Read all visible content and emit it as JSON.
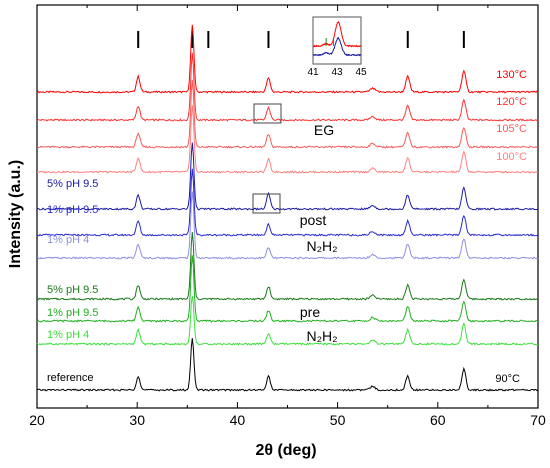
{
  "chart_data": {
    "type": "line",
    "xlabel": "2θ (deg)",
    "ylabel": "Intensity (a.u.)",
    "xlim": [
      20,
      70
    ],
    "xticks": [
      20,
      30,
      40,
      50,
      60,
      70
    ],
    "yticks_shown": false,
    "grid": false,
    "reference_lines": [
      30.1,
      35.5,
      37.1,
      43.1,
      57.0,
      62.6
    ],
    "peaks": [
      30.1,
      35.5,
      43.1,
      53.5,
      57.0,
      62.6
    ],
    "series": [
      {
        "label": "130°C",
        "label_side": "right",
        "color": "#ff0000",
        "peak_heights": [
          0.22,
          0.95,
          0.2,
          0.05,
          0.22,
          0.3
        ]
      },
      {
        "label": "120°C",
        "label_side": "right",
        "color": "#ff3333",
        "peak_heights": [
          0.2,
          0.95,
          0.18,
          0.05,
          0.2,
          0.28
        ]
      },
      {
        "label": "105°C",
        "label_side": "right",
        "color": "#f55b5b",
        "peak_heights": [
          0.2,
          0.95,
          0.18,
          0.05,
          0.2,
          0.28
        ]
      },
      {
        "label": "100°C",
        "label_side": "right",
        "color": "#ff8080",
        "peak_heights": [
          0.2,
          0.95,
          0.18,
          0.05,
          0.2,
          0.28
        ]
      },
      {
        "label": "5% pH 9.5",
        "label_side": "left",
        "color": "#1a1aa6",
        "peak_heights": [
          0.2,
          0.95,
          0.22,
          0.05,
          0.2,
          0.3
        ]
      },
      {
        "label": "1% pH 9.5",
        "label_side": "left",
        "color": "#2a2ad4",
        "peak_heights": [
          0.2,
          0.95,
          0.15,
          0.05,
          0.2,
          0.28
        ]
      },
      {
        "label": "1% pH 4",
        "label_side": "left",
        "color": "#8f8fe3",
        "peak_heights": [
          0.2,
          0.95,
          0.15,
          0.05,
          0.2,
          0.28
        ]
      },
      {
        "label": "5% pH 9.5",
        "label_side": "left",
        "color": "#1a7a1a",
        "peak_heights": [
          0.2,
          0.95,
          0.18,
          0.05,
          0.2,
          0.28
        ]
      },
      {
        "label": "1% pH 9.5",
        "label_side": "left",
        "color": "#22b022",
        "peak_heights": [
          0.2,
          0.95,
          0.15,
          0.05,
          0.2,
          0.28
        ]
      },
      {
        "label": "1% pH 4",
        "label_side": "left",
        "color": "#3ce03c",
        "peak_heights": [
          0.2,
          0.7,
          0.15,
          0.05,
          0.2,
          0.28
        ]
      },
      {
        "label": "reference",
        "label_side": "left",
        "color": "#000000",
        "peak_heights": [
          0.2,
          0.75,
          0.2,
          0.05,
          0.2,
          0.3
        ]
      }
    ],
    "annotations": [
      {
        "text": "90°C",
        "color": "#000000"
      },
      {
        "text": "EG",
        "color": "#000000"
      },
      {
        "text": "post",
        "color": "#000000"
      },
      {
        "text": "N₂H₂",
        "color": "#000000"
      },
      {
        "text": "pre",
        "color": "#000000"
      },
      {
        "text": "N₂H₂",
        "color": "#000000"
      }
    ],
    "inset": {
      "xlim": [
        41,
        45
      ],
      "xticks": [
        41,
        43,
        45
      ],
      "traces": [
        {
          "color": "#ff0000",
          "peak_height": 0.85
        },
        {
          "color": "#1a1aa6",
          "peak_height": 0.6
        }
      ],
      "marker_lines": [
        42.1,
        42.7
      ]
    }
  }
}
